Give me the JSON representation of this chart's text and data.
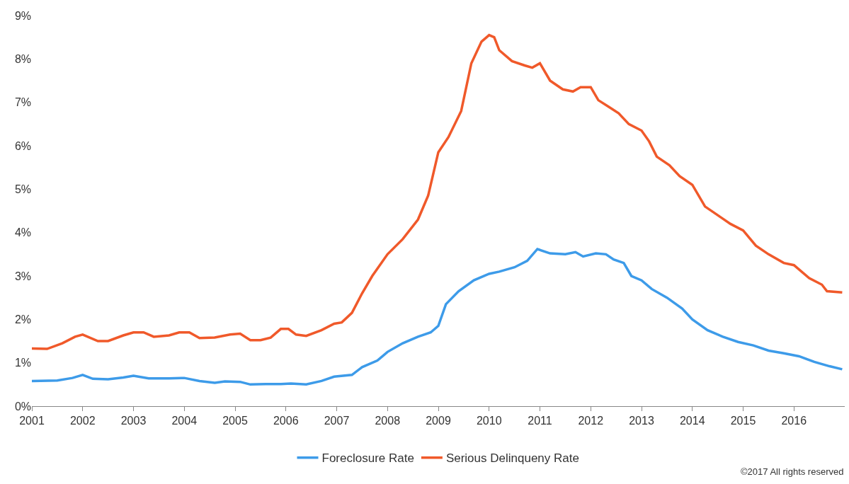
{
  "chart_data": {
    "type": "line",
    "xlim": [
      2001,
      2017
    ],
    "xticks": [
      2001,
      2002,
      2003,
      2004,
      2005,
      2006,
      2007,
      2008,
      2009,
      2010,
      2011,
      2012,
      2013,
      2014,
      2015,
      2016
    ],
    "ylim": [
      0,
      9
    ],
    "yticks": [
      {
        "value": 0,
        "label": "0%"
      },
      {
        "value": 1,
        "label": "1%"
      },
      {
        "value": 2,
        "label": "2%"
      },
      {
        "value": 3,
        "label": "3%"
      },
      {
        "value": 4,
        "label": "4%"
      },
      {
        "value": 5,
        "label": "5%"
      },
      {
        "value": 6,
        "label": "6%"
      },
      {
        "value": 7,
        "label": "7%"
      },
      {
        "value": 8,
        "label": "8%"
      },
      {
        "value": 9,
        "label": "9%"
      }
    ],
    "grid": false,
    "legend": "bottom",
    "line_style": "solid",
    "marker": "none",
    "annotations": [
      "©2017 All rights reserved"
    ],
    "series": [
      {
        "name": "Foreclosure Rate",
        "color": "#3d9be9",
        "x": [
          2001.0,
          2001.5,
          2001.8,
          2002.0,
          2002.2,
          2002.5,
          2002.8,
          2003.0,
          2003.3,
          2003.7,
          2004.0,
          2004.3,
          2004.6,
          2004.8,
          2005.1,
          2005.3,
          2005.6,
          2005.9,
          2006.1,
          2006.4,
          2006.7,
          2006.95,
          2007.3,
          2007.5,
          2007.8,
          2008.0,
          2008.3,
          2008.6,
          2008.85,
          2009.0,
          2009.15,
          2009.4,
          2009.7,
          2010.0,
          2010.2,
          2010.5,
          2010.75,
          2010.95,
          2011.2,
          2011.5,
          2011.7,
          2011.85,
          2012.1,
          2012.3,
          2012.45,
          2012.65,
          2012.8,
          2013.0,
          2013.2,
          2013.5,
          2013.8,
          2014.0,
          2014.3,
          2014.6,
          2014.9,
          2015.2,
          2015.5,
          2015.8,
          2016.1,
          2016.4,
          2016.7,
          2016.95
        ],
        "values": [
          0.58,
          0.59,
          0.65,
          0.72,
          0.63,
          0.62,
          0.66,
          0.7,
          0.64,
          0.64,
          0.65,
          0.58,
          0.54,
          0.57,
          0.56,
          0.5,
          0.51,
          0.51,
          0.52,
          0.5,
          0.58,
          0.68,
          0.72,
          0.9,
          1.05,
          1.25,
          1.45,
          1.6,
          1.7,
          1.85,
          2.35,
          2.65,
          2.9,
          3.05,
          3.1,
          3.2,
          3.35,
          3.62,
          3.52,
          3.5,
          3.55,
          3.45,
          3.52,
          3.5,
          3.38,
          3.3,
          3.0,
          2.9,
          2.7,
          2.5,
          2.25,
          2.0,
          1.75,
          1.6,
          1.48,
          1.4,
          1.28,
          1.22,
          1.15,
          1.02,
          0.92,
          0.85
        ]
      },
      {
        "name": "Serious Delinqueny Rate",
        "color": "#f0592a",
        "x": [
          2001.0,
          2001.3,
          2001.6,
          2001.85,
          2002.0,
          2002.3,
          2002.5,
          2002.8,
          2003.0,
          2003.2,
          2003.4,
          2003.7,
          2003.9,
          2004.1,
          2004.3,
          2004.6,
          2004.9,
          2005.1,
          2005.3,
          2005.5,
          2005.7,
          2005.9,
          2006.05,
          2006.2,
          2006.4,
          2006.7,
          2006.95,
          2007.1,
          2007.3,
          2007.5,
          2007.7,
          2008.0,
          2008.3,
          2008.6,
          2008.8,
          2009.0,
          2009.2,
          2009.45,
          2009.65,
          2009.85,
          2010.0,
          2010.1,
          2010.2,
          2010.45,
          2010.7,
          2010.85,
          2011.0,
          2011.2,
          2011.45,
          2011.65,
          2011.8,
          2012.0,
          2012.15,
          2012.35,
          2012.55,
          2012.75,
          2013.0,
          2013.15,
          2013.3,
          2013.55,
          2013.75,
          2014.0,
          2014.25,
          2014.5,
          2014.75,
          2015.0,
          2015.25,
          2015.5,
          2015.8,
          2016.0,
          2016.3,
          2016.55,
          2016.65,
          2016.95
        ],
        "values": [
          1.33,
          1.32,
          1.45,
          1.6,
          1.65,
          1.5,
          1.5,
          1.63,
          1.7,
          1.7,
          1.6,
          1.63,
          1.7,
          1.7,
          1.57,
          1.58,
          1.65,
          1.67,
          1.52,
          1.52,
          1.58,
          1.78,
          1.78,
          1.65,
          1.62,
          1.75,
          1.9,
          1.93,
          2.15,
          2.6,
          3.0,
          3.5,
          3.85,
          4.3,
          4.85,
          5.85,
          6.2,
          6.8,
          7.9,
          8.4,
          8.55,
          8.5,
          8.2,
          7.95,
          7.85,
          7.8,
          7.9,
          7.5,
          7.3,
          7.25,
          7.35,
          7.35,
          7.05,
          6.9,
          6.75,
          6.5,
          6.35,
          6.1,
          5.75,
          5.55,
          5.3,
          5.1,
          4.6,
          4.4,
          4.2,
          4.05,
          3.7,
          3.5,
          3.3,
          3.25,
          2.95,
          2.8,
          2.65,
          2.62
        ]
      }
    ]
  }
}
